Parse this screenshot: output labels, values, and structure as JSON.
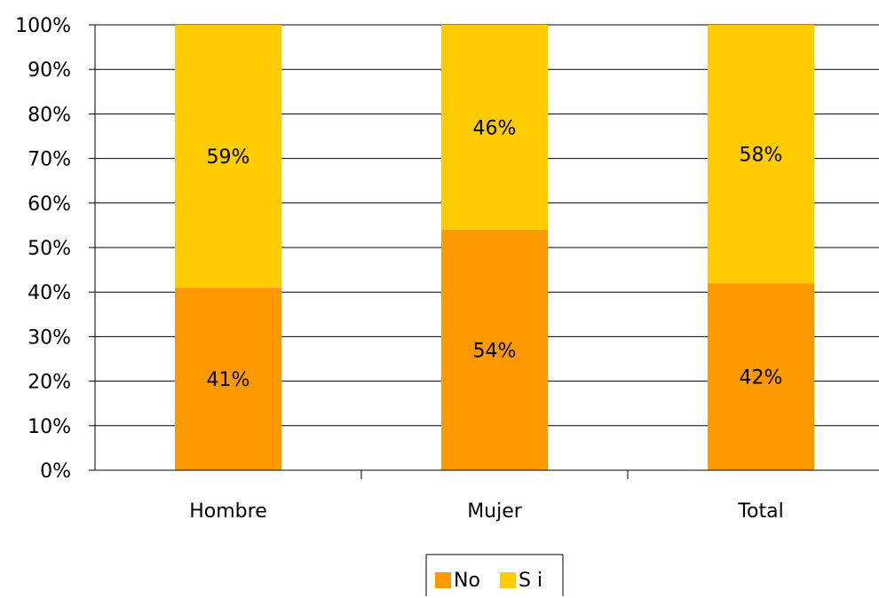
{
  "chart_data": {
    "type": "bar",
    "stacked": true,
    "percent_stacked": true,
    "categories": [
      "Hombre",
      "Mujer",
      "Total"
    ],
    "series": [
      {
        "name": "No",
        "values": [
          41,
          54,
          42
        ],
        "labels": [
          "41%",
          "54%",
          "42%"
        ],
        "color": "#FF9900"
      },
      {
        "name": "S i",
        "values": [
          59,
          46,
          58
        ],
        "labels": [
          "59%",
          "46%",
          "58%"
        ],
        "color": "#FFCC00"
      }
    ],
    "ylim": [
      0,
      100
    ],
    "yticks": [
      "0%",
      "10%",
      "20%",
      "30%",
      "40%",
      "50%",
      "60%",
      "70%",
      "80%",
      "90%",
      "100%"
    ],
    "grid": true,
    "legend": "bottom-center"
  }
}
